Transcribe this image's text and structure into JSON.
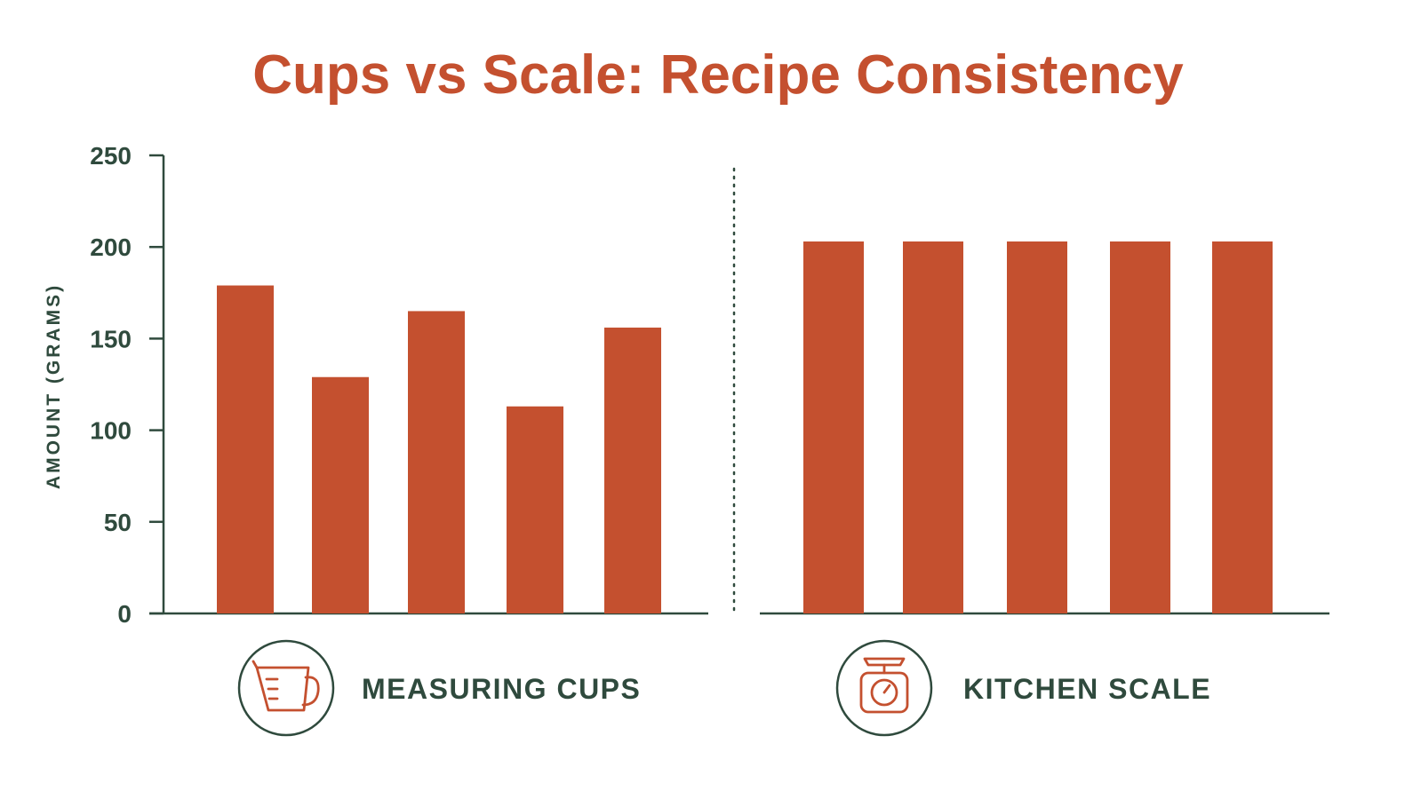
{
  "chart_data": {
    "type": "bar",
    "title": "Cups vs Scale: Recipe Consistency",
    "ylabel": "AMOUNT (GRAMS)",
    "ylim": [
      0,
      250
    ],
    "yticks": [
      0,
      50,
      100,
      150,
      200,
      250
    ],
    "grid": false,
    "groups": [
      {
        "label": "MEASURING CUPS",
        "icon": "measuring-cup-icon",
        "values": [
          179,
          129,
          165,
          113,
          156
        ]
      },
      {
        "label": "KITCHEN SCALE",
        "icon": "kitchen-scale-icon",
        "values": [
          203,
          203,
          203,
          203,
          203
        ]
      }
    ],
    "colors": {
      "bar": "#c4502f",
      "axis": "#2f4a3d",
      "title": "#c4502f",
      "text": "#2f4a3d"
    }
  }
}
